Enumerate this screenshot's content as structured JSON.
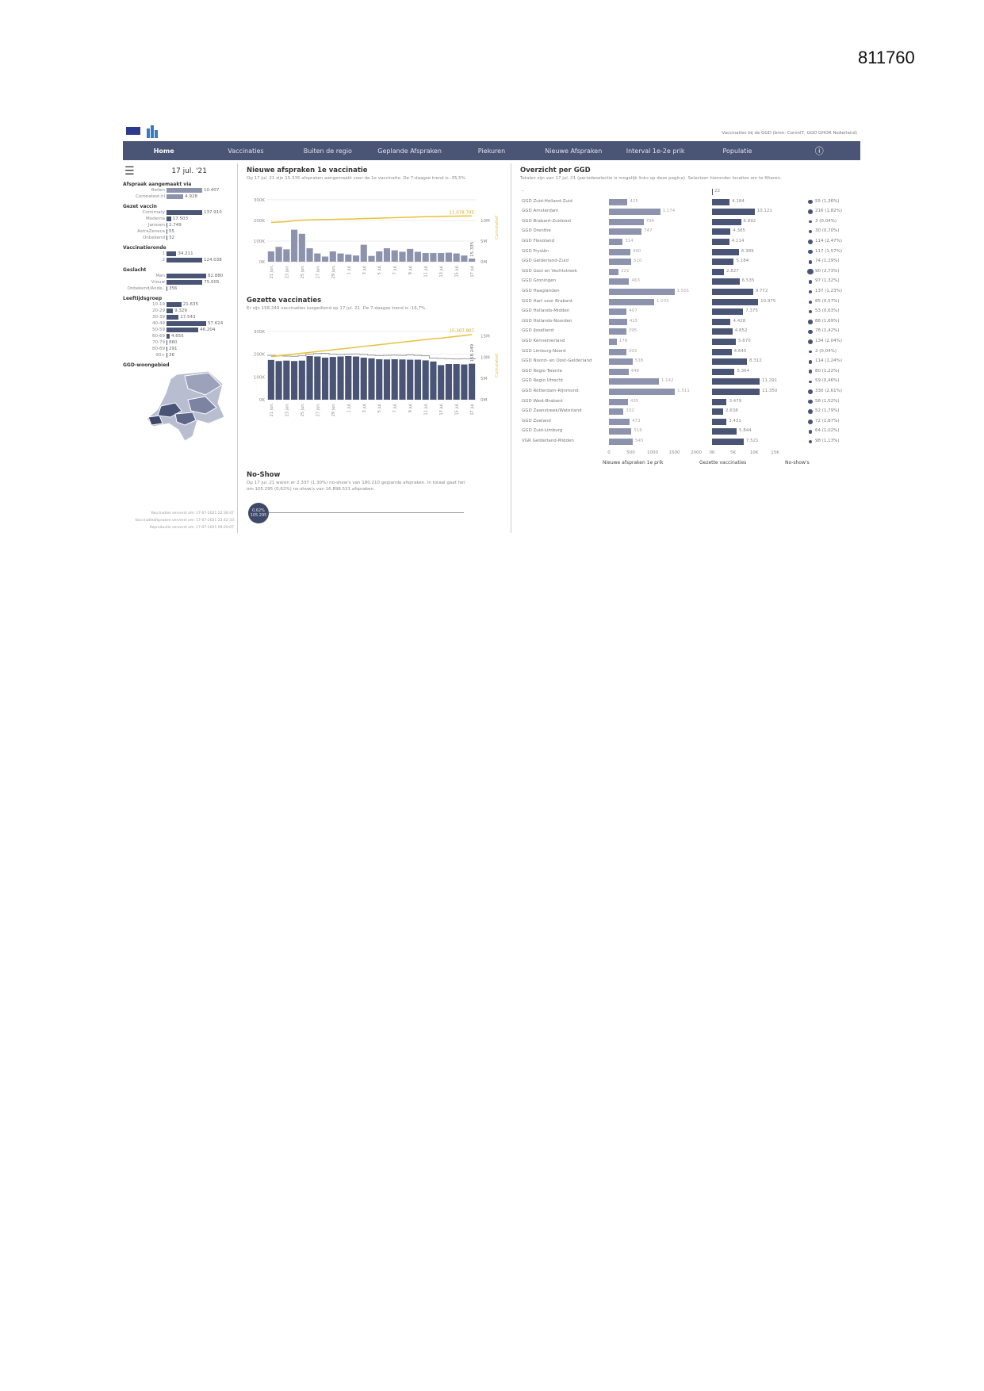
{
  "page_number": "811760",
  "header": {
    "source_note": "Vaccinaties bij de GGD (bron: CoronIT, GGD GHOR Nederland)"
  },
  "nav": [
    "Home",
    "Vaccinaties",
    "Buiten de regio",
    "Geplande Afspraken",
    "Piekuren",
    "Nieuwe Afspraken",
    "Interval 1e-2e prik",
    "Populatie"
  ],
  "nav_active": "Home",
  "left": {
    "date": "17 jul. '21",
    "afspraak": {
      "title": "Afspraak aangemaakt via",
      "items": [
        {
          "label": "Bellen",
          "value": "10.407",
          "n": 10407
        },
        {
          "label": "Coronatest.nl",
          "value": "4.928",
          "n": 4928
        }
      ]
    },
    "vaccin": {
      "title": "Gezet vaccin",
      "items": [
        {
          "label": "Comirnaty",
          "value": "137.910",
          "n": 137910
        },
        {
          "label": "Moderna",
          "value": "17.503",
          "n": 17503
        },
        {
          "label": "Janssen",
          "value": "2.749",
          "n": 2749
        },
        {
          "label": "AstraZeneca",
          "value": "55",
          "n": 55
        },
        {
          "label": "Onbekend",
          "value": "32",
          "n": 32
        }
      ]
    },
    "ronde": {
      "title": "Vaccinatieronde",
      "items": [
        {
          "label": "1",
          "value": "34.211",
          "n": 34211
        },
        {
          "label": "2",
          "value": "124.038",
          "n": 124038
        }
      ]
    },
    "geslacht": {
      "title": "Geslacht",
      "items": [
        {
          "label": "Man",
          "value": "82.880",
          "n": 82880
        },
        {
          "label": "Vrouw",
          "value": "75.005",
          "n": 75005
        },
        {
          "label": "Onbekend/Ande..",
          "value": "356",
          "n": 356
        }
      ]
    },
    "leeftijd": {
      "title": "Leeftijdsgroep",
      "items": [
        {
          "label": "10-19",
          "value": "21.635",
          "n": 21635
        },
        {
          "label": "20-29",
          "value": "9.329",
          "n": 9329
        },
        {
          "label": "30-39",
          "value": "17.543",
          "n": 17543
        },
        {
          "label": "40-49",
          "value": "57.624",
          "n": 57624
        },
        {
          "label": "50-59",
          "value": "46.204",
          "n": 46204
        },
        {
          "label": "60-69",
          "value": "4.655",
          "n": 4655
        },
        {
          "label": "70-79",
          "value": "860",
          "n": 860
        },
        {
          "label": "80-89",
          "value": "291",
          "n": 291
        },
        {
          "label": "90+",
          "value": "36",
          "n": 36
        }
      ]
    },
    "map_title": "GGD-woongebied",
    "footer": [
      "Vaccinaties ververst om: 17-07-2021 22:30:47",
      "Vaccinatieafspraken ververst om: 17-07-2021 22:42:33",
      "Reproductie ververst om: 17-07-2021 09:20:07"
    ]
  },
  "afspraken": {
    "title": "Nieuwe afspraken 1e vaccinatie",
    "subtitle": "Op 17 jul. 21 zijn 15.335 afspraken aangemaakt voor de 1e vaccinatie. De 7-daagse trend is -35,5%"
  },
  "gezet": {
    "title": "Gezette vaccinaties",
    "subtitle": "Er zijn 158.249 vaccinaties toegediend op 17 jul. 21. De 7-daagse trend is -16,7%."
  },
  "noshow": {
    "title": "No-Show",
    "subtitle1": "Op 17 jul. 21 waren er 2.337 (1,30%) no-show's van 180.210 geplande afspraken. In totaal gaat het",
    "subtitle2": "om 105.295 (0,62%) no-show's van 16.898.531 afspraken.",
    "badge_pct": "0,62%",
    "badge_val": "105.295"
  },
  "chart_data": [
    {
      "type": "bar",
      "title": "Nieuwe afspraken 1e vaccinatie",
      "x_ticks": [
        "21 jun.",
        "23 jun.",
        "25 jun.",
        "27 jun.",
        "29 jun.",
        "1 jul.",
        "3 jul.",
        "5 jul.",
        "7 jul.",
        "9 jul.",
        "11 jul.",
        "13 jul.",
        "15 jul.",
        "17 jul."
      ],
      "y_ticks": [
        "0K",
        "100K",
        "200K",
        "300K"
      ],
      "ylim": [
        0,
        330000
      ],
      "y2_ticks": [
        "0M",
        "5M",
        "10M"
      ],
      "y2lim": [
        0,
        16500000
      ],
      "y2label": "Cumulatief",
      "values": [
        50000,
        72000,
        60000,
        155000,
        135000,
        65000,
        40000,
        25000,
        50000,
        40000,
        35000,
        30000,
        82000,
        28000,
        50000,
        65000,
        55000,
        48000,
        62000,
        48000,
        42000,
        42000,
        42000,
        44000,
        40000,
        30000,
        15335
      ],
      "last_label": "15.335",
      "cumulative": [
        9500000,
        9600000,
        9700000,
        9900000,
        10050000,
        10120000,
        10170000,
        10200000,
        10250000,
        10290000,
        10320000,
        10350000,
        10450000,
        10480000,
        10530000,
        10600000,
        10660000,
        10710000,
        10780000,
        10830000,
        10880000,
        10920000,
        10960000,
        11000000,
        11040000,
        11060000,
        11078795
      ],
      "cumulative_label": "11.078.795",
      "colors": {
        "bar": "#8d93ad",
        "line": "#e8c23a"
      }
    },
    {
      "type": "bar",
      "title": "Gezette vaccinaties",
      "x_ticks": [
        "21 jun.",
        "23 jun.",
        "25 jun.",
        "27 jun.",
        "29 jun.",
        "1 jul.",
        "3 jul.",
        "5 jul.",
        "7 jul.",
        "9 jul.",
        "11 jul.",
        "13 jul.",
        "15 jul.",
        "17 jul."
      ],
      "y_ticks": [
        "0K",
        "100K",
        "200K",
        "300K"
      ],
      "ylim": [
        0,
        300000
      ],
      "y2_ticks": [
        "0M",
        "5M",
        "10M",
        "15M"
      ],
      "y2lim": [
        0,
        16000000
      ],
      "y2label": "Cumulatief",
      "values": [
        175000,
        170000,
        172000,
        170000,
        172000,
        192000,
        190000,
        185000,
        188000,
        190000,
        192000,
        190000,
        185000,
        182000,
        178000,
        177000,
        178000,
        177000,
        176000,
        176000,
        173000,
        168000,
        152000,
        157000,
        157000,
        155000,
        158249
      ],
      "last_label": "158.249",
      "average": [
        195000,
        193000,
        192000,
        191000,
        193000,
        200000,
        203000,
        204000,
        200000,
        199000,
        200000,
        201000,
        199000,
        196000,
        194000,
        195000,
        196000,
        195000,
        197000,
        195000,
        193000,
        183000,
        182000,
        180000,
        179000,
        180000,
        180000
      ],
      "cumulative": [
        10100000,
        10300000,
        10500000,
        10700000,
        10900000,
        11100000,
        11300000,
        11500000,
        11700000,
        11900000,
        12100000,
        12300000,
        12500000,
        12700000,
        12900000,
        13100000,
        13300000,
        13500000,
        13700000,
        13900000,
        14100000,
        14300000,
        14450000,
        14650000,
        14850000,
        15050000,
        15307907
      ],
      "cumulative_label": "15.307.907",
      "colors": {
        "bar": "#4a5576",
        "line": "#e8c23a",
        "avg": "#999999"
      }
    },
    {
      "type": "table",
      "title": "Overzicht per GGD",
      "subtitle": "Totalen zijn van 17 jul. 21 (periodeselectie is mogelijk links op deze pagina). Selecteer hieronder locaties om te filteren.",
      "columns": [
        "Nieuwe afspraken 1e prik",
        "Gezette vaccinaties",
        "No-show's"
      ],
      "axis1_ticks": [
        "0",
        "500",
        "1000",
        "1500",
        "2000"
      ],
      "axis2_ticks": [
        "0K",
        "5K",
        "10K",
        "15K"
      ],
      "rows": [
        {
          "name": "–",
          "afspraken": "",
          "a": 0,
          "gezet": "22",
          "g": 22,
          "noshow": "",
          "ns": 0
        },
        {
          "name": "GGD Zuid-Holland-Zuid",
          "afspraken": "425",
          "a": 425,
          "gezet": "4.184",
          "g": 4184,
          "noshow": "55 (1,36%)",
          "ns": 1.36
        },
        {
          "name": "GGD Amsterdam",
          "afspraken": "1.174",
          "a": 1174,
          "gezet": "10.121",
          "g": 10121,
          "noshow": "216 (1,82%)",
          "ns": 1.82
        },
        {
          "name": "GGD Brabant-Zuidoost",
          "afspraken": "794",
          "a": 794,
          "gezet": "6.892",
          "g": 6892,
          "noshow": "3 (0,04%)",
          "ns": 0.04
        },
        {
          "name": "GGD Drenthe",
          "afspraken": "747",
          "a": 747,
          "gezet": "4.385",
          "g": 4385,
          "noshow": "30 (0,70%)",
          "ns": 0.7
        },
        {
          "name": "GGD Flevoland",
          "afspraken": "314",
          "a": 314,
          "gezet": "4.114",
          "g": 4114,
          "noshow": "114 (2,47%)",
          "ns": 2.47
        },
        {
          "name": "GGD Fryslân",
          "afspraken": "490",
          "a": 490,
          "gezet": "6.389",
          "g": 6389,
          "noshow": "117 (1,57%)",
          "ns": 1.57
        },
        {
          "name": "GGD Gelderland-Zuid",
          "afspraken": "510",
          "a": 510,
          "gezet": "5.184",
          "g": 5184,
          "noshow": "74 (1,29%)",
          "ns": 1.29
        },
        {
          "name": "GGD Gooi en Vechtstreek",
          "afspraken": "221",
          "a": 221,
          "gezet": "2.827",
          "g": 2827,
          "noshow": "90 (2,73%)",
          "ns": 2.73
        },
        {
          "name": "GGD Groningen",
          "afspraken": "463",
          "a": 463,
          "gezet": "6.535",
          "g": 6535,
          "noshow": "97 (1,32%)",
          "ns": 1.32
        },
        {
          "name": "GGD Haaglanden",
          "afspraken": "1.501",
          "a": 1501,
          "gezet": "9.772",
          "g": 9772,
          "noshow": "137 (1,23%)",
          "ns": 1.23
        },
        {
          "name": "GGD Hart voor Brabant",
          "afspraken": "1.033",
          "a": 1033,
          "gezet": "10.975",
          "g": 10975,
          "noshow": "85 (0,57%)",
          "ns": 0.57
        },
        {
          "name": "GGD Hollands-Midden",
          "afspraken": "407",
          "a": 407,
          "gezet": "7.375",
          "g": 7375,
          "noshow": "53 (0,63%)",
          "ns": 0.63
        },
        {
          "name": "GGD Hollands-Noorden",
          "afspraken": "415",
          "a": 415,
          "gezet": "4.428",
          "g": 4428,
          "noshow": "88 (1,69%)",
          "ns": 1.69
        },
        {
          "name": "GGD IJsselland",
          "afspraken": "395",
          "a": 395,
          "gezet": "4.852",
          "g": 4852,
          "noshow": "78 (1,42%)",
          "ns": 1.42
        },
        {
          "name": "GGD Kennemerland",
          "afspraken": "178",
          "a": 178,
          "gezet": "5.670",
          "g": 5670,
          "noshow": "134 (2,04%)",
          "ns": 2.04
        },
        {
          "name": "GGD Limburg-Noord",
          "afspraken": "393",
          "a": 393,
          "gezet": "4.645",
          "g": 4645,
          "noshow": "2 (0,04%)",
          "ns": 0.04
        },
        {
          "name": "GGD Noord- en Oost-Gelderland",
          "afspraken": "538",
          "a": 538,
          "gezet": "8.312",
          "g": 8312,
          "noshow": "114 (1,24%)",
          "ns": 1.24
        },
        {
          "name": "GGD Regio Twente",
          "afspraken": "448",
          "a": 448,
          "gezet": "5.364",
          "g": 5364,
          "noshow": "80 (1,22%)",
          "ns": 1.22
        },
        {
          "name": "GGD Regio Utrecht",
          "afspraken": "1.142",
          "a": 1142,
          "gezet": "11.291",
          "g": 11291,
          "noshow": "59 (0,46%)",
          "ns": 0.46
        },
        {
          "name": "GGD Rotterdam-Rijnmond",
          "afspraken": "1.511",
          "a": 1511,
          "gezet": "11.350",
          "g": 11350,
          "noshow": "330 (2,61%)",
          "ns": 2.61
        },
        {
          "name": "GGD West-Brabant",
          "afspraken": "435",
          "a": 435,
          "gezet": "3.479",
          "g": 3479,
          "noshow": "58 (1,52%)",
          "ns": 1.52
        },
        {
          "name": "GGD Zaanstreek/Waterland",
          "afspraken": "332",
          "a": 332,
          "gezet": "2.638",
          "g": 2638,
          "noshow": "52 (1,79%)",
          "ns": 1.79
        },
        {
          "name": "GGD Zeeland",
          "afspraken": "473",
          "a": 473,
          "gezet": "3.431",
          "g": 3431,
          "noshow": "72 (1,87%)",
          "ns": 1.87
        },
        {
          "name": "GGD Zuid-Limburg",
          "afspraken": "516",
          "a": 516,
          "gezet": "5.844",
          "g": 5844,
          "noshow": "64 (1,02%)",
          "ns": 1.02
        },
        {
          "name": "VGR Gelderland-Midden",
          "afspraken": "545",
          "a": 545,
          "gezet": "7.521",
          "g": 7521,
          "noshow": "98 (1,13%)",
          "ns": 1.13
        }
      ]
    }
  ]
}
